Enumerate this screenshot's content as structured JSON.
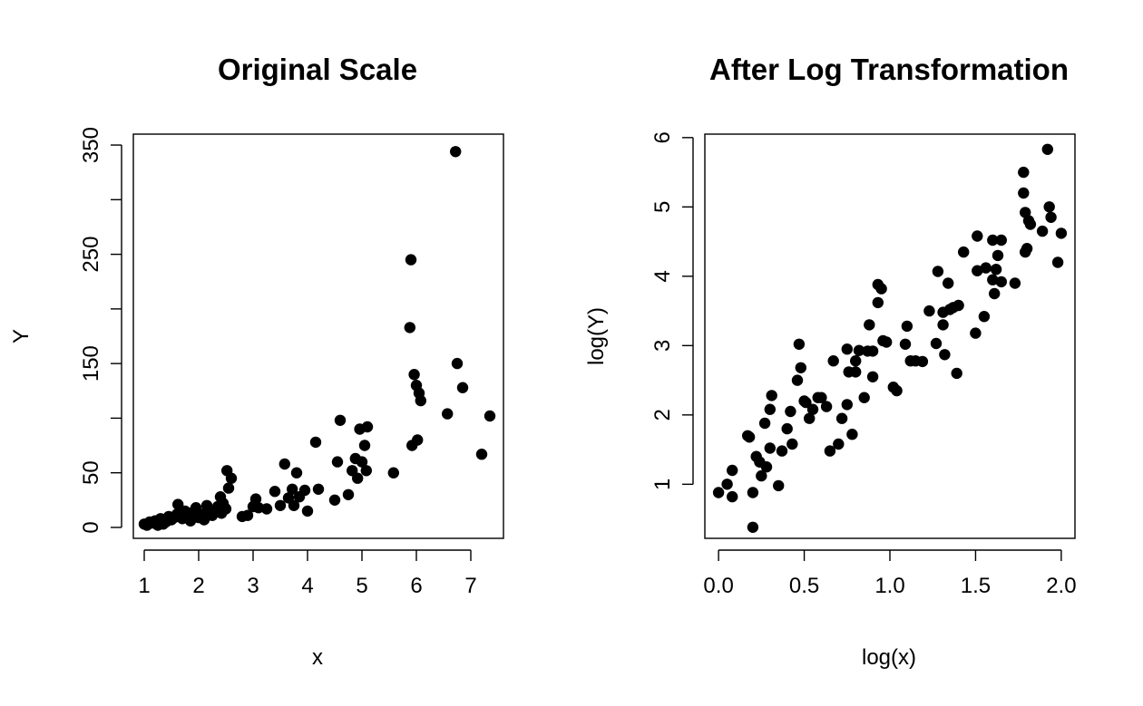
{
  "chart_data": [
    {
      "type": "scatter",
      "title": "Original Scale",
      "xlabel": "x",
      "ylabel": "Y",
      "xlim": [
        0.8,
        7.6
      ],
      "ylim": [
        -10,
        360
      ],
      "xticks": [
        1,
        2,
        3,
        4,
        5,
        6,
        7
      ],
      "yticks": [
        0,
        50,
        150,
        250,
        350
      ],
      "yminor": [
        100,
        200,
        300
      ],
      "grid": false,
      "x": [
        1.0,
        1.05,
        1.1,
        1.15,
        1.2,
        1.25,
        1.3,
        1.35,
        1.4,
        1.45,
        1.5,
        1.55,
        1.6,
        1.62,
        1.7,
        1.75,
        1.8,
        1.85,
        1.9,
        1.95,
        2.0,
        2.05,
        2.1,
        2.15,
        2.2,
        2.25,
        2.3,
        2.35,
        2.4,
        2.42,
        2.45,
        2.5,
        2.52,
        2.55,
        2.6,
        2.8,
        2.9,
        3.0,
        3.05,
        3.1,
        3.25,
        3.4,
        3.5,
        3.58,
        3.65,
        3.72,
        3.75,
        3.8,
        3.85,
        3.95,
        4.0,
        4.15,
        4.2,
        4.5,
        4.55,
        4.6,
        4.75,
        4.82,
        4.88,
        4.92,
        4.96,
        5.0,
        5.05,
        5.08,
        5.1,
        5.58,
        5.88,
        5.9,
        5.92,
        5.96,
        6.0,
        6.02,
        6.05,
        6.08,
        6.57,
        6.72,
        6.75,
        6.85,
        7.2,
        7.35
      ],
      "values": [
        3,
        2,
        5,
        4,
        6,
        2,
        8,
        3,
        5,
        10,
        7,
        9,
        12,
        21,
        8,
        15,
        10,
        6,
        14,
        18,
        9,
        12,
        7,
        20,
        16,
        11,
        15,
        19,
        28,
        13,
        22,
        17,
        52,
        36,
        45,
        10,
        11,
        19,
        26,
        18,
        17,
        33,
        20,
        58,
        27,
        35,
        20,
        50,
        28,
        34,
        15,
        78,
        35,
        25,
        60,
        98,
        30,
        52,
        63,
        45,
        90,
        60,
        75,
        52,
        92,
        50,
        183,
        245,
        75,
        140,
        130,
        80,
        123,
        116,
        104,
        344,
        150,
        128,
        67,
        102
      ]
    },
    {
      "type": "scatter",
      "title": "After Log Transformation",
      "xlabel": "log(x)",
      "ylabel": "log(Y)",
      "xlim": [
        -0.08,
        2.08
      ],
      "ylim": [
        0.22,
        6.05
      ],
      "xticks": [
        "0.0",
        "0.5",
        "1.0",
        "1.5",
        "2.0"
      ],
      "yticks": [
        1,
        2,
        3,
        4,
        5,
        6
      ],
      "grid": false,
      "x": [
        0.0,
        0.05,
        0.08,
        0.08,
        0.17,
        0.18,
        0.2,
        0.2,
        0.22,
        0.24,
        0.25,
        0.27,
        0.28,
        0.3,
        0.3,
        0.31,
        0.35,
        0.37,
        0.4,
        0.42,
        0.43,
        0.46,
        0.47,
        0.48,
        0.5,
        0.51,
        0.53,
        0.55,
        0.58,
        0.6,
        0.63,
        0.65,
        0.67,
        0.7,
        0.72,
        0.75,
        0.75,
        0.76,
        0.78,
        0.8,
        0.8,
        0.82,
        0.85,
        0.87,
        0.88,
        0.9,
        0.9,
        0.93,
        0.93,
        0.95,
        0.96,
        0.98,
        1.02,
        1.04,
        1.09,
        1.1,
        1.12,
        1.15,
        1.19,
        1.23,
        1.27,
        1.28,
        1.31,
        1.31,
        1.32,
        1.34,
        1.35,
        1.37,
        1.39,
        1.4,
        1.43,
        1.5,
        1.51,
        1.51,
        1.55,
        1.56,
        1.6,
        1.6,
        1.61,
        1.62,
        1.63,
        1.65,
        1.65,
        1.73,
        1.78,
        1.78,
        1.79,
        1.79,
        1.8,
        1.81,
        1.82,
        1.89,
        1.92,
        1.93,
        1.94,
        1.98,
        2.0
      ],
      "values": [
        0.88,
        1.0,
        1.2,
        0.82,
        1.7,
        1.68,
        0.88,
        0.38,
        1.4,
        1.32,
        1.12,
        1.88,
        1.25,
        2.08,
        1.52,
        2.28,
        0.98,
        1.48,
        1.8,
        2.05,
        1.58,
        2.5,
        3.02,
        2.68,
        2.2,
        2.18,
        1.95,
        2.08,
        2.25,
        2.25,
        2.12,
        1.48,
        2.78,
        1.58,
        1.95,
        2.15,
        2.95,
        2.62,
        1.72,
        2.62,
        2.78,
        2.93,
        2.25,
        2.92,
        3.3,
        2.55,
        2.92,
        3.88,
        3.62,
        3.82,
        3.07,
        3.05,
        2.4,
        2.35,
        3.02,
        3.28,
        2.78,
        2.78,
        2.77,
        3.5,
        3.03,
        4.07,
        3.48,
        3.3,
        2.87,
        3.9,
        3.52,
        3.55,
        2.6,
        3.58,
        4.35,
        3.18,
        4.08,
        4.58,
        3.42,
        4.12,
        3.95,
        4.52,
        3.75,
        4.1,
        4.3,
        3.92,
        4.52,
        3.9,
        5.5,
        5.2,
        4.92,
        4.35,
        4.4,
        4.8,
        4.75,
        4.65,
        5.83,
        5.0,
        4.85,
        4.2,
        4.62
      ]
    }
  ]
}
